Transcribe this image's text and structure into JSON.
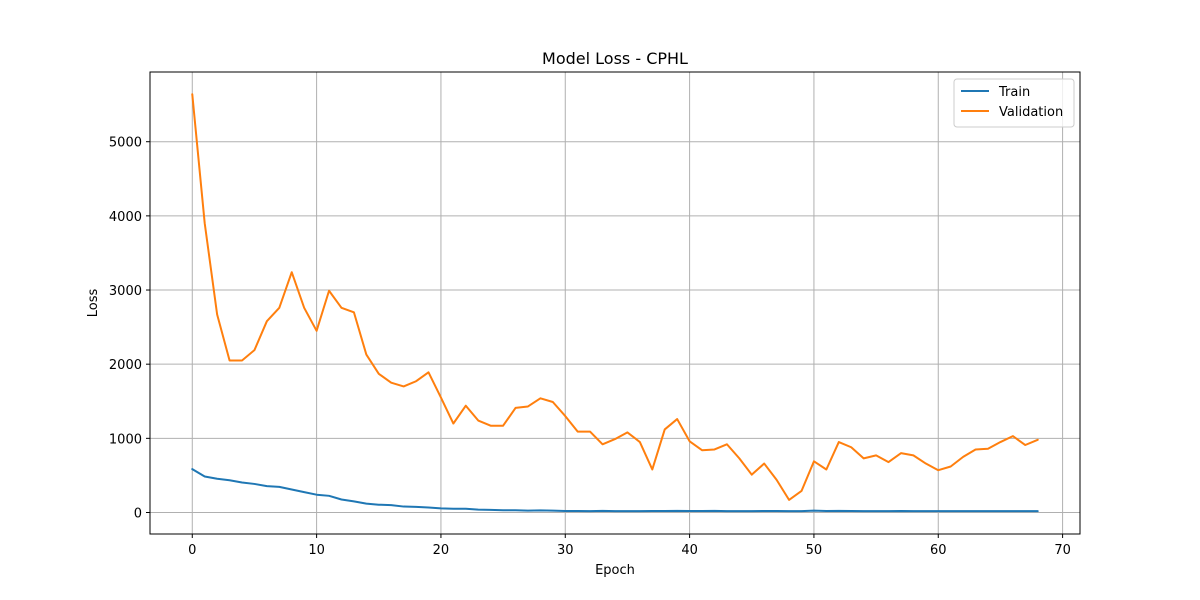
{
  "chart_data": {
    "type": "line",
    "title": "Model Loss - CPHL",
    "xlabel": "Epoch",
    "ylabel": "Loss",
    "xlim": [
      -3.4,
      71.4
    ],
    "ylim": [
      -290,
      5940
    ],
    "xticks": [
      0,
      10,
      20,
      30,
      40,
      50,
      60,
      70
    ],
    "yticks": [
      0,
      1000,
      2000,
      3000,
      4000,
      5000
    ],
    "grid": true,
    "legend_position": "top-right",
    "series": [
      {
        "name": "Train",
        "color": "#1f77b4",
        "values": [
          585,
          485,
          455,
          435,
          405,
          385,
          355,
          345,
          310,
          275,
          240,
          225,
          175,
          150,
          120,
          105,
          100,
          80,
          75,
          68,
          55,
          50,
          50,
          38,
          35,
          30,
          30,
          25,
          28,
          25,
          20,
          20,
          18,
          22,
          18,
          18,
          18,
          20,
          20,
          22,
          20,
          20,
          22,
          18,
          18,
          18,
          20,
          20,
          18,
          18,
          25,
          20,
          22,
          20,
          18,
          18,
          18,
          20,
          18,
          18,
          18,
          18,
          18,
          18,
          18,
          18,
          18,
          18,
          18
        ]
      },
      {
        "name": "Validation",
        "color": "#ff7f0e",
        "values": [
          5640,
          3900,
          2670,
          2050,
          2050,
          2190,
          2580,
          2760,
          3240,
          2760,
          2450,
          2990,
          2760,
          2700,
          2130,
          1870,
          1750,
          1700,
          1770,
          1890,
          1550,
          1200,
          1440,
          1240,
          1170,
          1170,
          1410,
          1430,
          1540,
          1490,
          1300,
          1090,
          1090,
          920,
          990,
          1080,
          950,
          580,
          1120,
          1260,
          960,
          840,
          850,
          920,
          730,
          510,
          660,
          440,
          170,
          290,
          690,
          580,
          950,
          880,
          730,
          770,
          680,
          800,
          770,
          660,
          570,
          620,
          750,
          850,
          860,
          950,
          1030,
          910,
          980
        ]
      }
    ]
  }
}
